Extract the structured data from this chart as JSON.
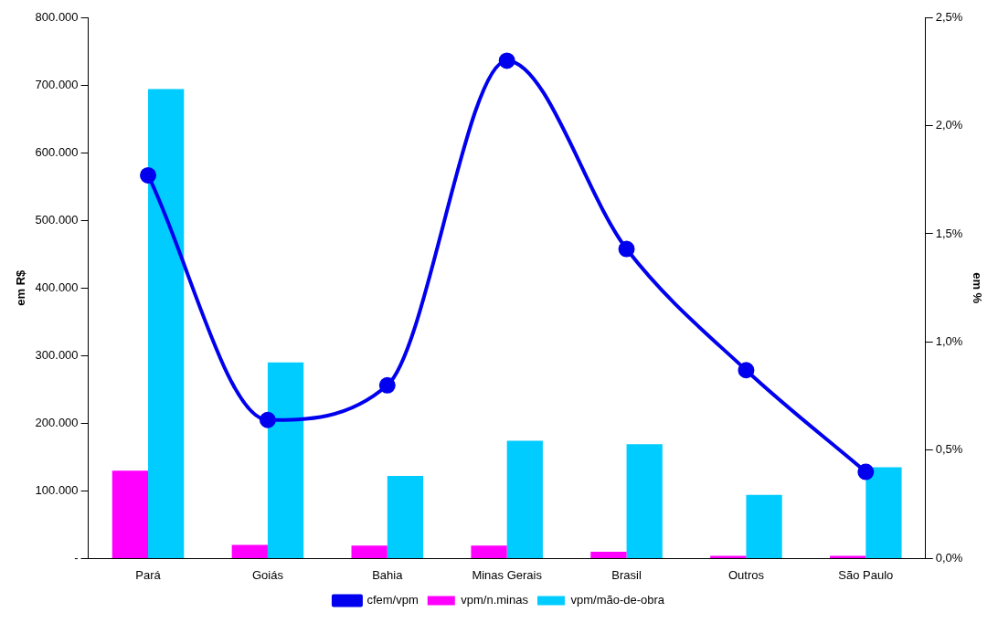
{
  "chart_data": {
    "type": "bar",
    "ylabel": "em R$",
    "y2label": "em %",
    "categories": [
      "Pará",
      "Goiás",
      "Bahia",
      "Minas Gerais",
      "Brasil",
      "Outros",
      "São Paulo"
    ],
    "series": [
      {
        "name": "vpm/n.minas",
        "color": "#ff00ff",
        "values": [
          130000,
          20000,
          19000,
          19000,
          10000,
          4000,
          4000
        ]
      },
      {
        "name": "vpm/mão-de-obra",
        "color": "#00ccff",
        "values": [
          694000,
          290000,
          122000,
          174000,
          169000,
          94000,
          135000
        ]
      },
      {
        "name": "cfem/vpm",
        "type": "line",
        "axis": "y2",
        "color": "#0000ee",
        "values": [
          1.77,
          0.64,
          0.8,
          2.3,
          1.43,
          0.87,
          0.4
        ]
      }
    ],
    "ylim": [
      0,
      800000
    ],
    "yticks": [
      {
        "value": 0,
        "label": "-"
      },
      {
        "value": 100000,
        "label": "100.000"
      },
      {
        "value": 200000,
        "label": "200.000"
      },
      {
        "value": 300000,
        "label": "300.000"
      },
      {
        "value": 400000,
        "label": "400.000"
      },
      {
        "value": 500000,
        "label": "500.000"
      },
      {
        "value": 600000,
        "label": "600.000"
      },
      {
        "value": 700000,
        "label": "700.000"
      },
      {
        "value": 800000,
        "label": "800.000"
      }
    ],
    "y2lim": [
      0,
      2.5
    ],
    "y2ticks": [
      {
        "value": 0,
        "label": "0,0%"
      },
      {
        "value": 0.5,
        "label": "0,5%"
      },
      {
        "value": 1,
        "label": "1,0%"
      },
      {
        "value": 1.5,
        "label": "1,5%"
      },
      {
        "value": 2,
        "label": "2,0%"
      },
      {
        "value": 2.5,
        "label": "2,5%"
      }
    ],
    "grid": false,
    "legend": "bottom",
    "marker": "circle",
    "line_style": "solid"
  }
}
